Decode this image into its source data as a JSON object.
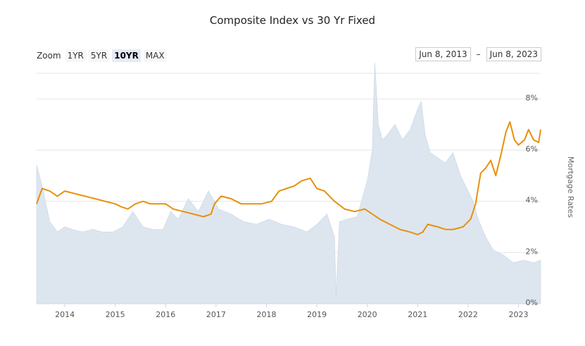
{
  "title": "Composite Index vs 30 Yr Fixed",
  "zoom": {
    "label": "Zoom",
    "buttons": [
      "1YR",
      "5YR",
      "10YR",
      "MAX"
    ],
    "active": "10YR"
  },
  "range": {
    "from": "Jun 8, 2013",
    "separator": "–",
    "to": "Jun 8, 2023"
  },
  "colors": {
    "mortgage_line": "#e8900c",
    "index_area": "#dde6ef",
    "grid": "#e6e6e6"
  },
  "chart_data": {
    "type": "line",
    "title": "Composite Index vs 30 Yr Fixed",
    "xlabel": "",
    "ylabel": "Mortgage Rates",
    "x_ticks": [
      "2014",
      "2015",
      "2016",
      "2017",
      "2018",
      "2019",
      "2020",
      "2021",
      "2022",
      "2023"
    ],
    "y_ticks": [
      "0%",
      "2%",
      "4%",
      "6%",
      "8%"
    ],
    "ylim": [
      0,
      9
    ],
    "grid": true,
    "series": [
      {
        "style": "area",
        "x": [
          2013.44,
          2013.55,
          2013.7,
          2013.85,
          2014.0,
          2014.15,
          2014.35,
          2014.55,
          2014.75,
          2014.95,
          2015.15,
          2015.35,
          2015.55,
          2015.75,
          2015.95,
          2016.1,
          2016.25,
          2016.45,
          2016.65,
          2016.85,
          2017.05,
          2017.3,
          2017.55,
          2017.8,
          2018.05,
          2018.3,
          2018.55,
          2018.8,
          2019.0,
          2019.2,
          2019.35,
          2019.38,
          2019.45,
          2019.6,
          2019.8,
          2020.0,
          2020.1,
          2020.15,
          2020.22,
          2020.3,
          2020.4,
          2020.55,
          2020.7,
          2020.85,
          2021.0,
          2021.07,
          2021.15,
          2021.25,
          2021.4,
          2021.55,
          2021.7,
          2021.85,
          2022.0,
          2022.1,
          2022.2,
          2022.35,
          2022.5,
          2022.7,
          2022.9,
          2023.1,
          2023.3,
          2023.44
        ],
        "values": [
          5.4,
          4.6,
          3.2,
          2.8,
          3.0,
          2.9,
          2.8,
          2.9,
          2.8,
          2.8,
          3.0,
          3.6,
          3.0,
          2.9,
          2.9,
          3.6,
          3.3,
          4.1,
          3.6,
          4.4,
          3.7,
          3.5,
          3.2,
          3.1,
          3.3,
          3.1,
          3.0,
          2.8,
          3.1,
          3.5,
          2.6,
          0.3,
          3.2,
          3.3,
          3.4,
          4.8,
          6.0,
          9.4,
          7.0,
          6.4,
          6.6,
          7.0,
          6.4,
          6.8,
          7.6,
          7.9,
          6.6,
          5.9,
          5.7,
          5.5,
          5.9,
          5.0,
          4.4,
          4.0,
          3.3,
          2.6,
          2.1,
          1.9,
          1.6,
          1.7,
          1.6,
          1.7
        ]
      },
      {
        "style": "line",
        "x": [
          2013.44,
          2013.55,
          2013.7,
          2013.85,
          2014.0,
          2014.2,
          2014.4,
          2014.6,
          2014.8,
          2015.0,
          2015.1,
          2015.25,
          2015.4,
          2015.55,
          2015.7,
          2015.85,
          2016.0,
          2016.15,
          2016.35,
          2016.55,
          2016.75,
          2016.9,
          2016.97,
          2017.1,
          2017.3,
          2017.5,
          2017.7,
          2017.9,
          2018.1,
          2018.25,
          2018.4,
          2018.55,
          2018.7,
          2018.87,
          2019.0,
          2019.15,
          2019.35,
          2019.55,
          2019.75,
          2019.95,
          2020.1,
          2020.25,
          2020.45,
          2020.65,
          2020.85,
          2021.0,
          2021.1,
          2021.2,
          2021.4,
          2021.55,
          2021.7,
          2021.9,
          2022.05,
          2022.15,
          2022.25,
          2022.35,
          2022.45,
          2022.55,
          2022.65,
          2022.75,
          2022.83,
          2022.92,
          2023.0,
          2023.12,
          2023.2,
          2023.3,
          2023.4,
          2023.44
        ],
        "values": [
          3.9,
          4.5,
          4.4,
          4.2,
          4.4,
          4.3,
          4.2,
          4.1,
          4.0,
          3.9,
          3.8,
          3.7,
          3.9,
          4.0,
          3.9,
          3.9,
          3.9,
          3.7,
          3.6,
          3.5,
          3.4,
          3.5,
          3.9,
          4.2,
          4.1,
          3.9,
          3.9,
          3.9,
          4.0,
          4.4,
          4.5,
          4.6,
          4.8,
          4.9,
          4.5,
          4.4,
          4.0,
          3.7,
          3.6,
          3.7,
          3.5,
          3.3,
          3.1,
          2.9,
          2.8,
          2.7,
          2.8,
          3.1,
          3.0,
          2.9,
          2.9,
          3.0,
          3.3,
          3.9,
          5.1,
          5.3,
          5.6,
          5.0,
          5.8,
          6.7,
          7.1,
          6.4,
          6.2,
          6.4,
          6.8,
          6.4,
          6.3,
          6.8
        ]
      }
    ]
  }
}
